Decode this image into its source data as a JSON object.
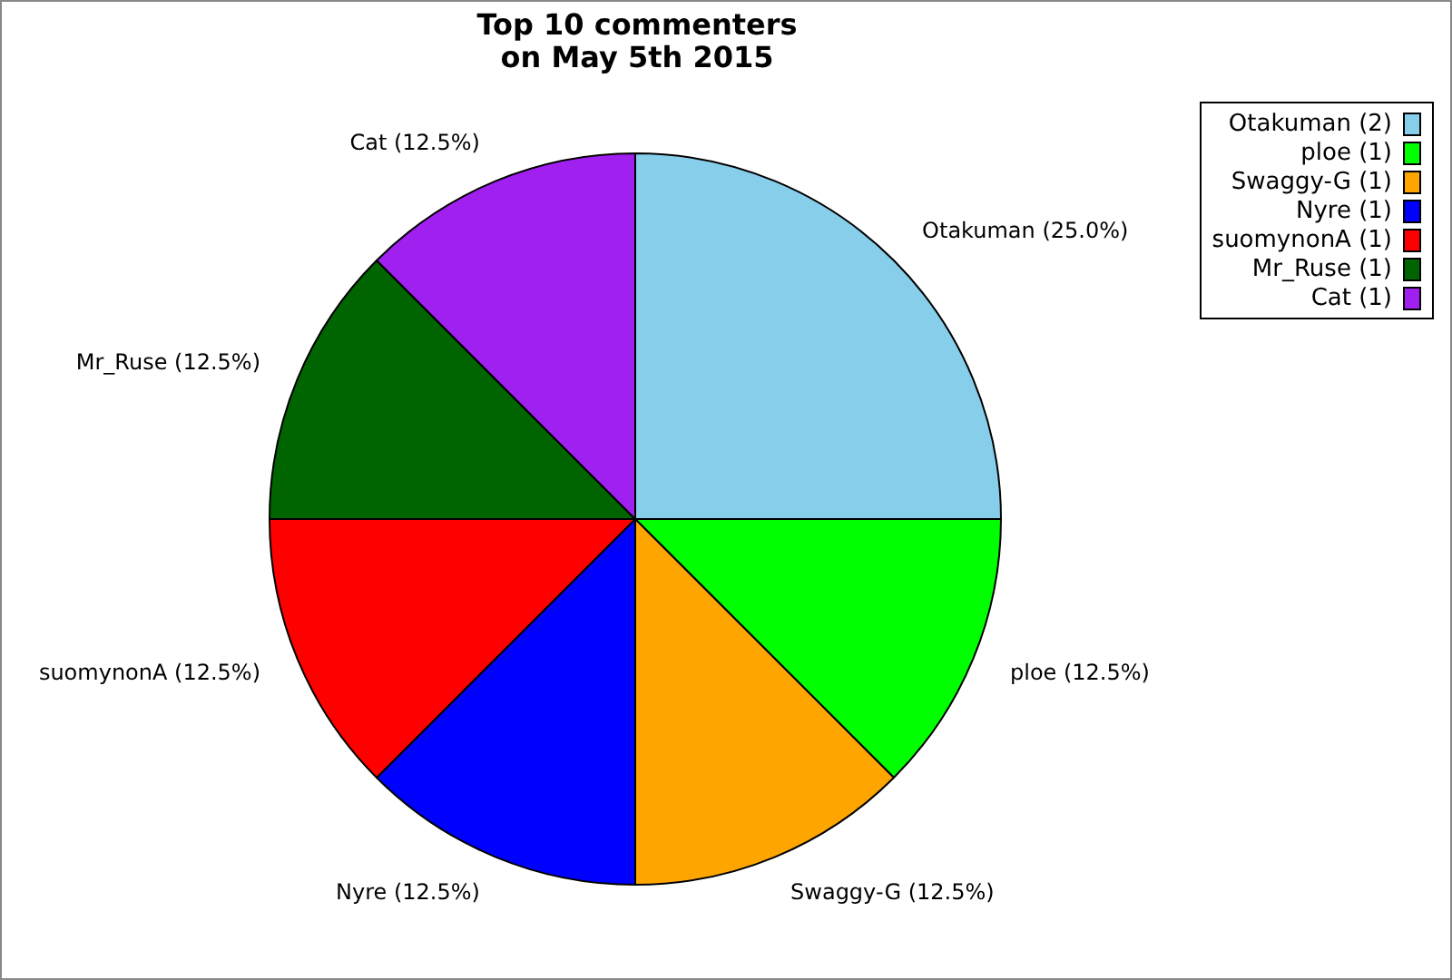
{
  "chart_data": {
    "type": "pie",
    "title": "Top 10 commenters\non May 5th 2015",
    "categories": [
      "Otakuman (2)",
      "ploe (1)",
      "Swaggy-G (1)",
      "Nyre (1)",
      "suomynonA (1)",
      "Mr_Ruse (1)",
      "Cat (1)"
    ],
    "values": [
      25,
      12.5,
      12.5,
      12.5,
      12.5,
      12.5,
      12.5
    ],
    "value_labels": [
      "Otakuman (25.0%)",
      "ploe (12.5%)",
      "Swaggy-G (12.5%)",
      "Nyre (12.5%)",
      "suomynonA (12.5%)",
      "Mr_Ruse (12.5%)",
      "Cat (12.5%)"
    ],
    "colors": [
      "#87ceeb",
      "#00ff00",
      "#ffa500",
      "#0000ff",
      "#ff0000",
      "#006400",
      "#a020f0"
    ],
    "legend": "top right"
  }
}
